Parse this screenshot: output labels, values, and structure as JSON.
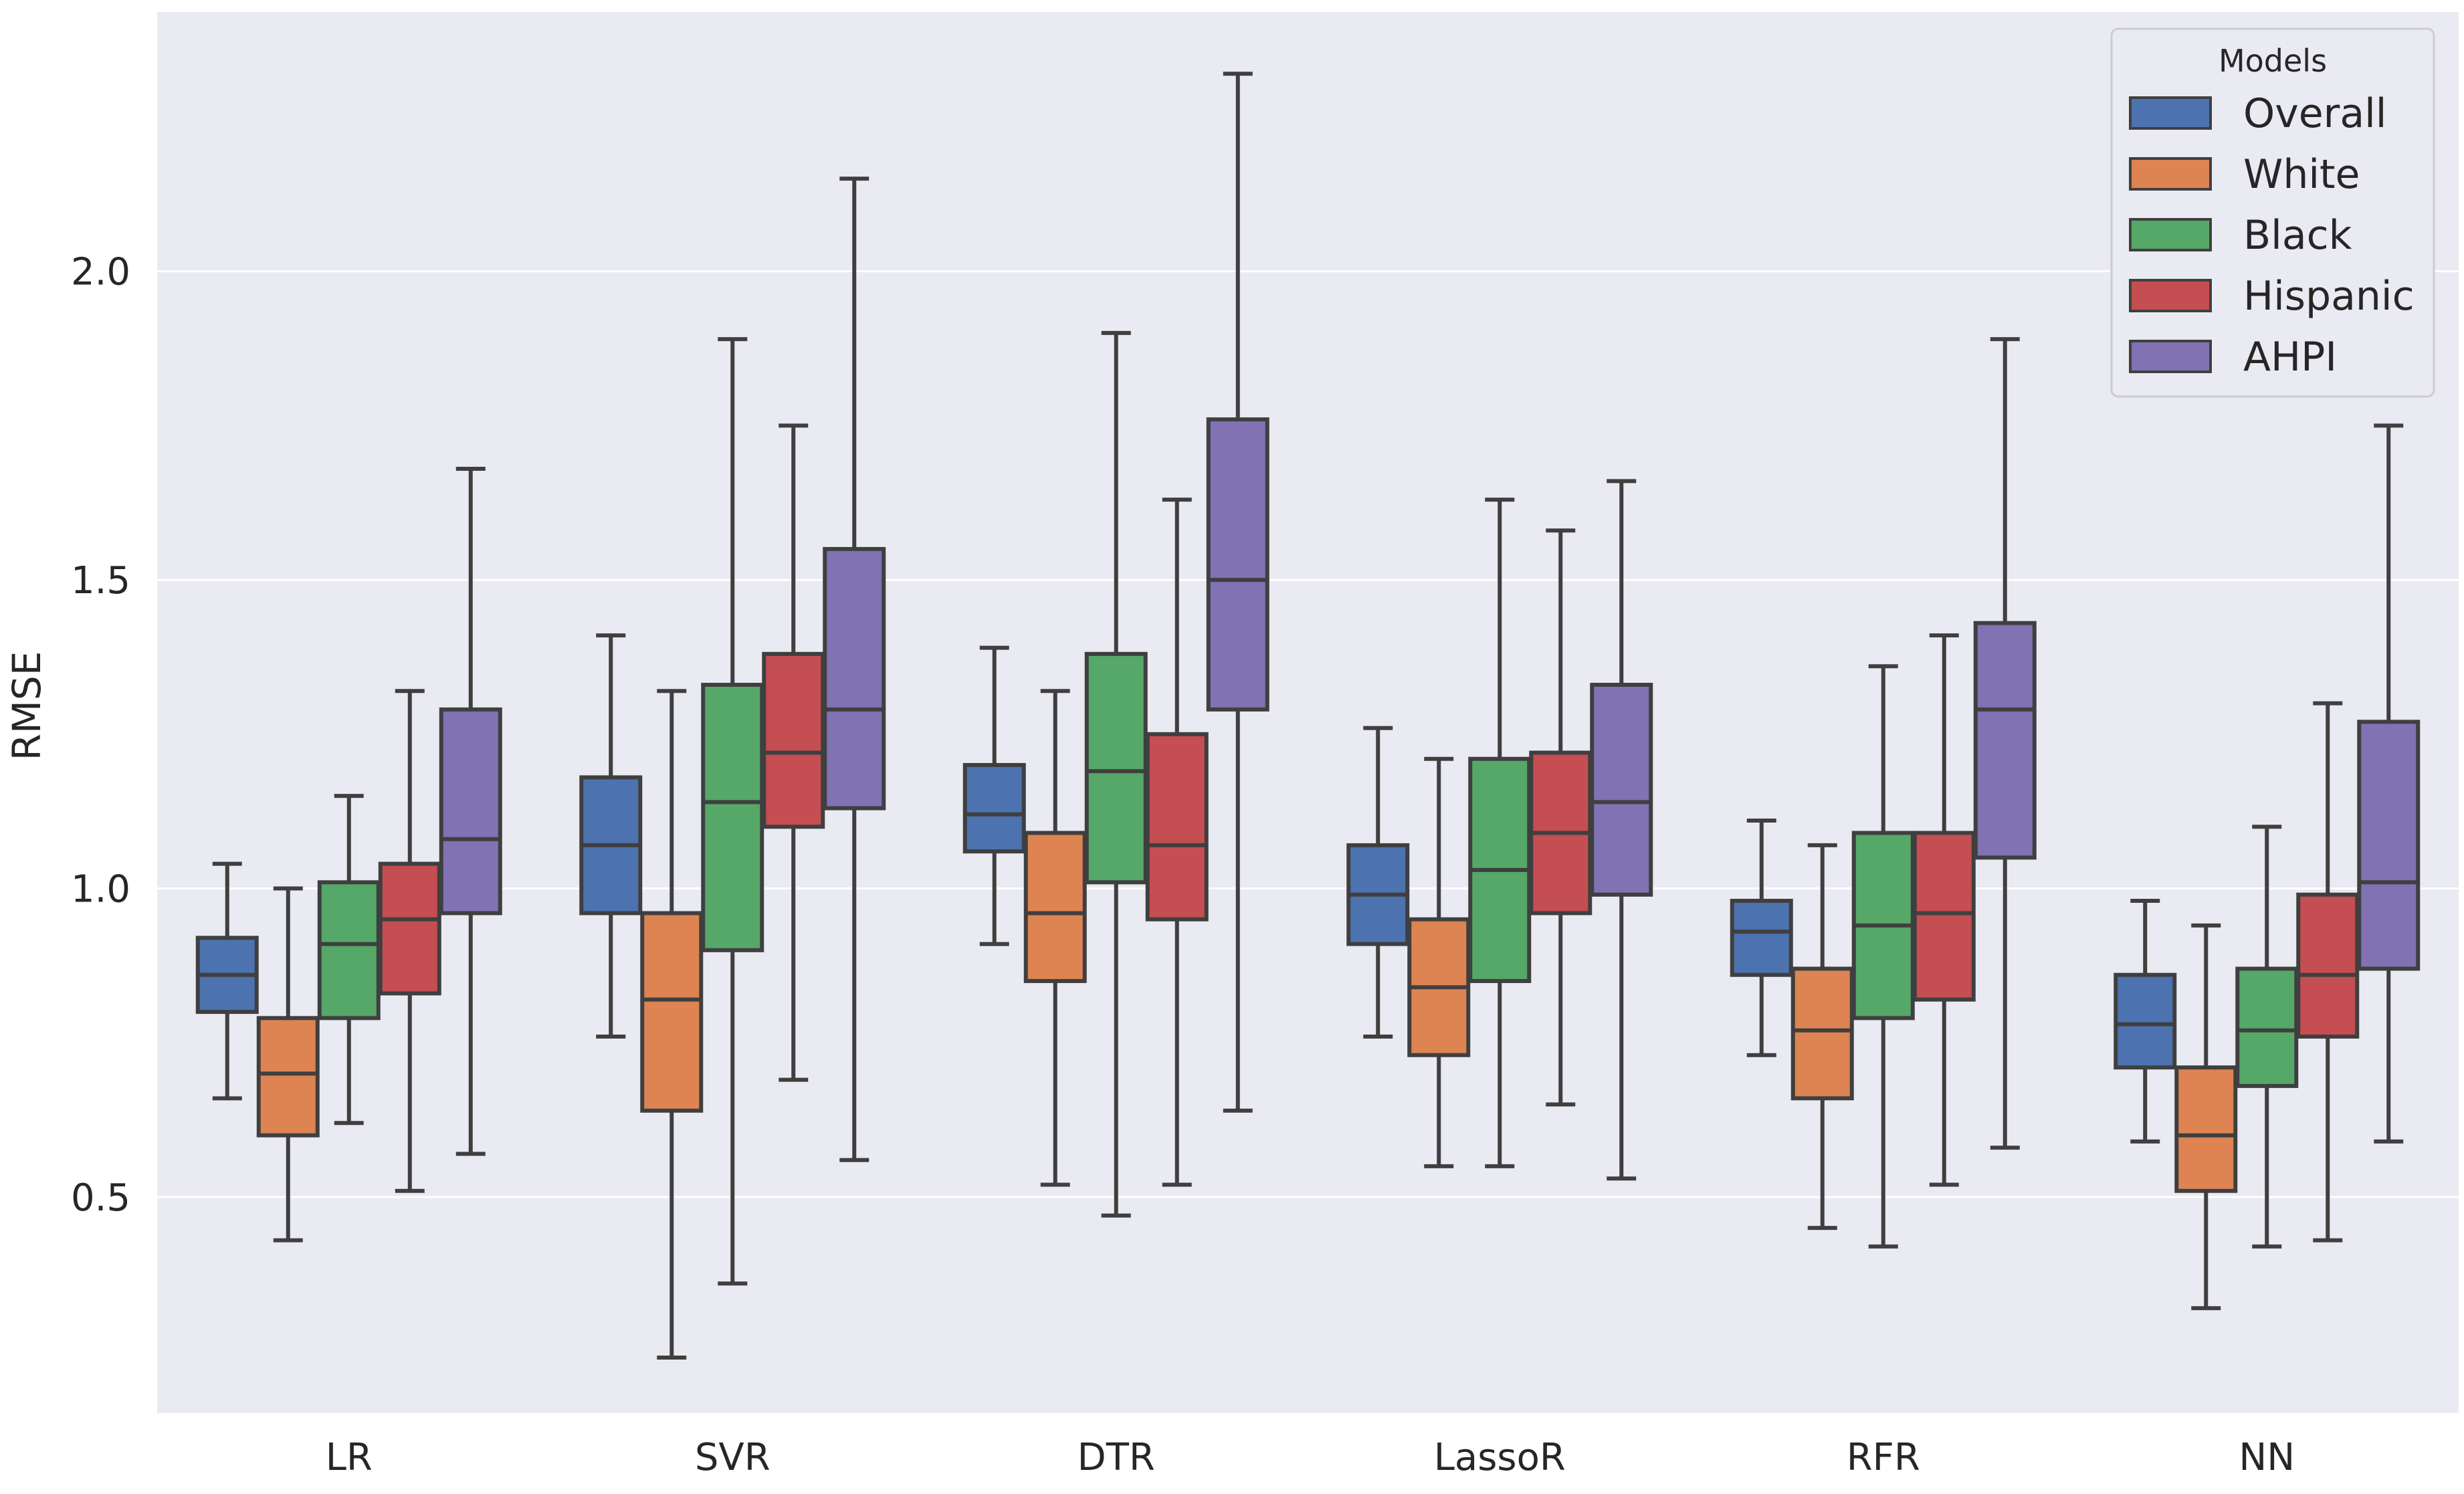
{
  "chart_data": {
    "type": "boxplot",
    "title": "",
    "xlabel": "",
    "ylabel": "RMSE",
    "ylim": [
      0.15,
      2.42
    ],
    "yticks": [
      0.5,
      1.0,
      1.5,
      2.0
    ],
    "ytick_labels": [
      "0.5",
      "1.0",
      "1.5",
      "2.0"
    ],
    "grid": true,
    "legend": {
      "title": "Models",
      "position": "top-right"
    },
    "categories": [
      "LR",
      "SVR",
      "DTR",
      "LassoR",
      "RFR",
      "NN"
    ],
    "series": [
      {
        "name": "Overall",
        "color": "#4c72b0",
        "boxes": [
          {
            "whisker_low": 0.66,
            "q1": 0.8,
            "median": 0.86,
            "q3": 0.92,
            "whisker_high": 1.04
          },
          {
            "whisker_low": 0.76,
            "q1": 0.96,
            "median": 1.07,
            "q3": 1.18,
            "whisker_high": 1.41
          },
          {
            "whisker_low": 0.91,
            "q1": 1.06,
            "median": 1.12,
            "q3": 1.2,
            "whisker_high": 1.39
          },
          {
            "whisker_low": 0.76,
            "q1": 0.91,
            "median": 0.99,
            "q3": 1.07,
            "whisker_high": 1.26
          },
          {
            "whisker_low": 0.73,
            "q1": 0.86,
            "median": 0.93,
            "q3": 0.98,
            "whisker_high": 1.11
          },
          {
            "whisker_low": 0.59,
            "q1": 0.71,
            "median": 0.78,
            "q3": 0.86,
            "whisker_high": 0.98
          }
        ]
      },
      {
        "name": "White",
        "color": "#dd8452",
        "boxes": [
          {
            "whisker_low": 0.43,
            "q1": 0.6,
            "median": 0.7,
            "q3": 0.79,
            "whisker_high": 1.0
          },
          {
            "whisker_low": 0.24,
            "q1": 0.64,
            "median": 0.82,
            "q3": 0.96,
            "whisker_high": 1.32
          },
          {
            "whisker_low": 0.52,
            "q1": 0.85,
            "median": 0.96,
            "q3": 1.09,
            "whisker_high": 1.32
          },
          {
            "whisker_low": 0.55,
            "q1": 0.73,
            "median": 0.84,
            "q3": 0.95,
            "whisker_high": 1.21
          },
          {
            "whisker_low": 0.45,
            "q1": 0.66,
            "median": 0.77,
            "q3": 0.87,
            "whisker_high": 1.07
          },
          {
            "whisker_low": 0.32,
            "q1": 0.51,
            "median": 0.6,
            "q3": 0.71,
            "whisker_high": 0.94
          }
        ]
      },
      {
        "name": "Black",
        "color": "#55a868",
        "boxes": [
          {
            "whisker_low": 0.62,
            "q1": 0.79,
            "median": 0.91,
            "q3": 1.01,
            "whisker_high": 1.15
          },
          {
            "whisker_low": 0.36,
            "q1": 0.9,
            "median": 1.14,
            "q3": 1.33,
            "whisker_high": 1.89
          },
          {
            "whisker_low": 0.47,
            "q1": 1.01,
            "median": 1.19,
            "q3": 1.38,
            "whisker_high": 1.9
          },
          {
            "whisker_low": 0.55,
            "q1": 0.85,
            "median": 1.03,
            "q3": 1.21,
            "whisker_high": 1.63
          },
          {
            "whisker_low": 0.42,
            "q1": 0.79,
            "median": 0.94,
            "q3": 1.09,
            "whisker_high": 1.36
          },
          {
            "whisker_low": 0.42,
            "q1": 0.68,
            "median": 0.77,
            "q3": 0.87,
            "whisker_high": 1.1
          }
        ]
      },
      {
        "name": "Hispanic",
        "color": "#c44e52",
        "boxes": [
          {
            "whisker_low": 0.51,
            "q1": 0.83,
            "median": 0.95,
            "q3": 1.04,
            "whisker_high": 1.32
          },
          {
            "whisker_low": 0.69,
            "q1": 1.1,
            "median": 1.22,
            "q3": 1.38,
            "whisker_high": 1.75
          },
          {
            "whisker_low": 0.52,
            "q1": 0.95,
            "median": 1.07,
            "q3": 1.25,
            "whisker_high": 1.63
          },
          {
            "whisker_low": 0.65,
            "q1": 0.96,
            "median": 1.09,
            "q3": 1.22,
            "whisker_high": 1.58
          },
          {
            "whisker_low": 0.52,
            "q1": 0.82,
            "median": 0.96,
            "q3": 1.09,
            "whisker_high": 1.41
          },
          {
            "whisker_low": 0.43,
            "q1": 0.76,
            "median": 0.86,
            "q3": 0.99,
            "whisker_high": 1.3
          }
        ]
      },
      {
        "name": "AHPI",
        "color": "#8172b3",
        "boxes": [
          {
            "whisker_low": 0.57,
            "q1": 0.96,
            "median": 1.08,
            "q3": 1.29,
            "whisker_high": 1.68
          },
          {
            "whisker_low": 0.56,
            "q1": 1.13,
            "median": 1.29,
            "q3": 1.55,
            "whisker_high": 2.15
          },
          {
            "whisker_low": 0.64,
            "q1": 1.29,
            "median": 1.5,
            "q3": 1.76,
            "whisker_high": 2.32
          },
          {
            "whisker_low": 0.53,
            "q1": 0.99,
            "median": 1.14,
            "q3": 1.33,
            "whisker_high": 1.66
          },
          {
            "whisker_low": 0.58,
            "q1": 1.05,
            "median": 1.29,
            "q3": 1.43,
            "whisker_high": 1.89
          },
          {
            "whisker_low": 0.59,
            "q1": 0.87,
            "median": 1.01,
            "q3": 1.27,
            "whisker_high": 1.75
          }
        ]
      }
    ]
  }
}
